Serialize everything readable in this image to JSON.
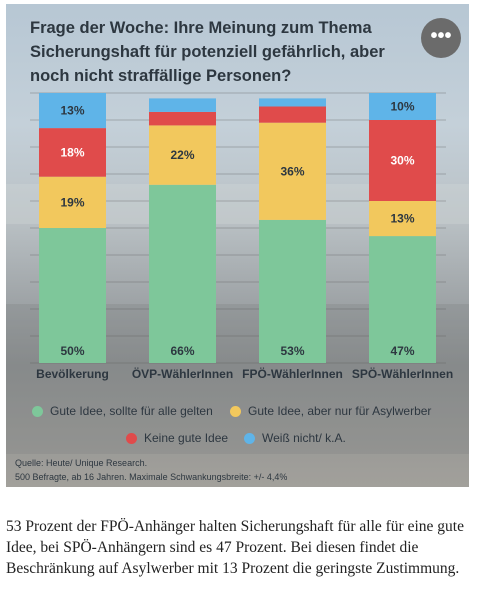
{
  "chart_title": "Frage der Woche: Ihre Meinung zum Thema Sicherungshaft für potenziell gefährlich, aber noch nicht straffällige Personen?",
  "menu_icon": "more-horizontal-icon",
  "chart_data": {
    "type": "bar",
    "stacked": true,
    "categories": [
      "Bevölkerung",
      "ÖVP-WählerInnen",
      "FPÖ-WählerInnen",
      "SPÖ-WählerInnen"
    ],
    "ylim": [
      0,
      100
    ],
    "series": [
      {
        "name": "Gute Idee, sollte für alle gelten",
        "color": "#7ec79a",
        "values": [
          50,
          66,
          53,
          47
        ],
        "labels": [
          "50%",
          "66%",
          "53%",
          "47%"
        ]
      },
      {
        "name": "Gute Idee, aber nur für Asylwerber",
        "color": "#f2c85d",
        "values": [
          19,
          22,
          36,
          13
        ],
        "labels": [
          "19%",
          "22%",
          "36%",
          "13%"
        ]
      },
      {
        "name": "Keine gute Idee",
        "color": "#e04b4b",
        "values": [
          18,
          5,
          6,
          30
        ],
        "labels": [
          "18%",
          "",
          "",
          "30%"
        ]
      },
      {
        "name": "Weiß nicht/ k.A.",
        "color": "#5fb4e8",
        "values": [
          13,
          5,
          3,
          10
        ],
        "labels": [
          "13%",
          "",
          "",
          "10%"
        ]
      }
    ]
  },
  "source_line1": "Quelle: Heute/ Unique Research.",
  "source_line2": "500 Befragte, ab 16 Jahren. Maximale Schwankungsbreite: +/- 4,4%",
  "caption": "53 Prozent der FPÖ-Anhänger halten Sicherungshaft für alle für eine gute Idee, bei SPÖ-Anhängern sind es 47 Prozent. Bei diesen findet die Beschränkung auf Asylwerber mit 13 Prozent die geringste Zustimmung."
}
